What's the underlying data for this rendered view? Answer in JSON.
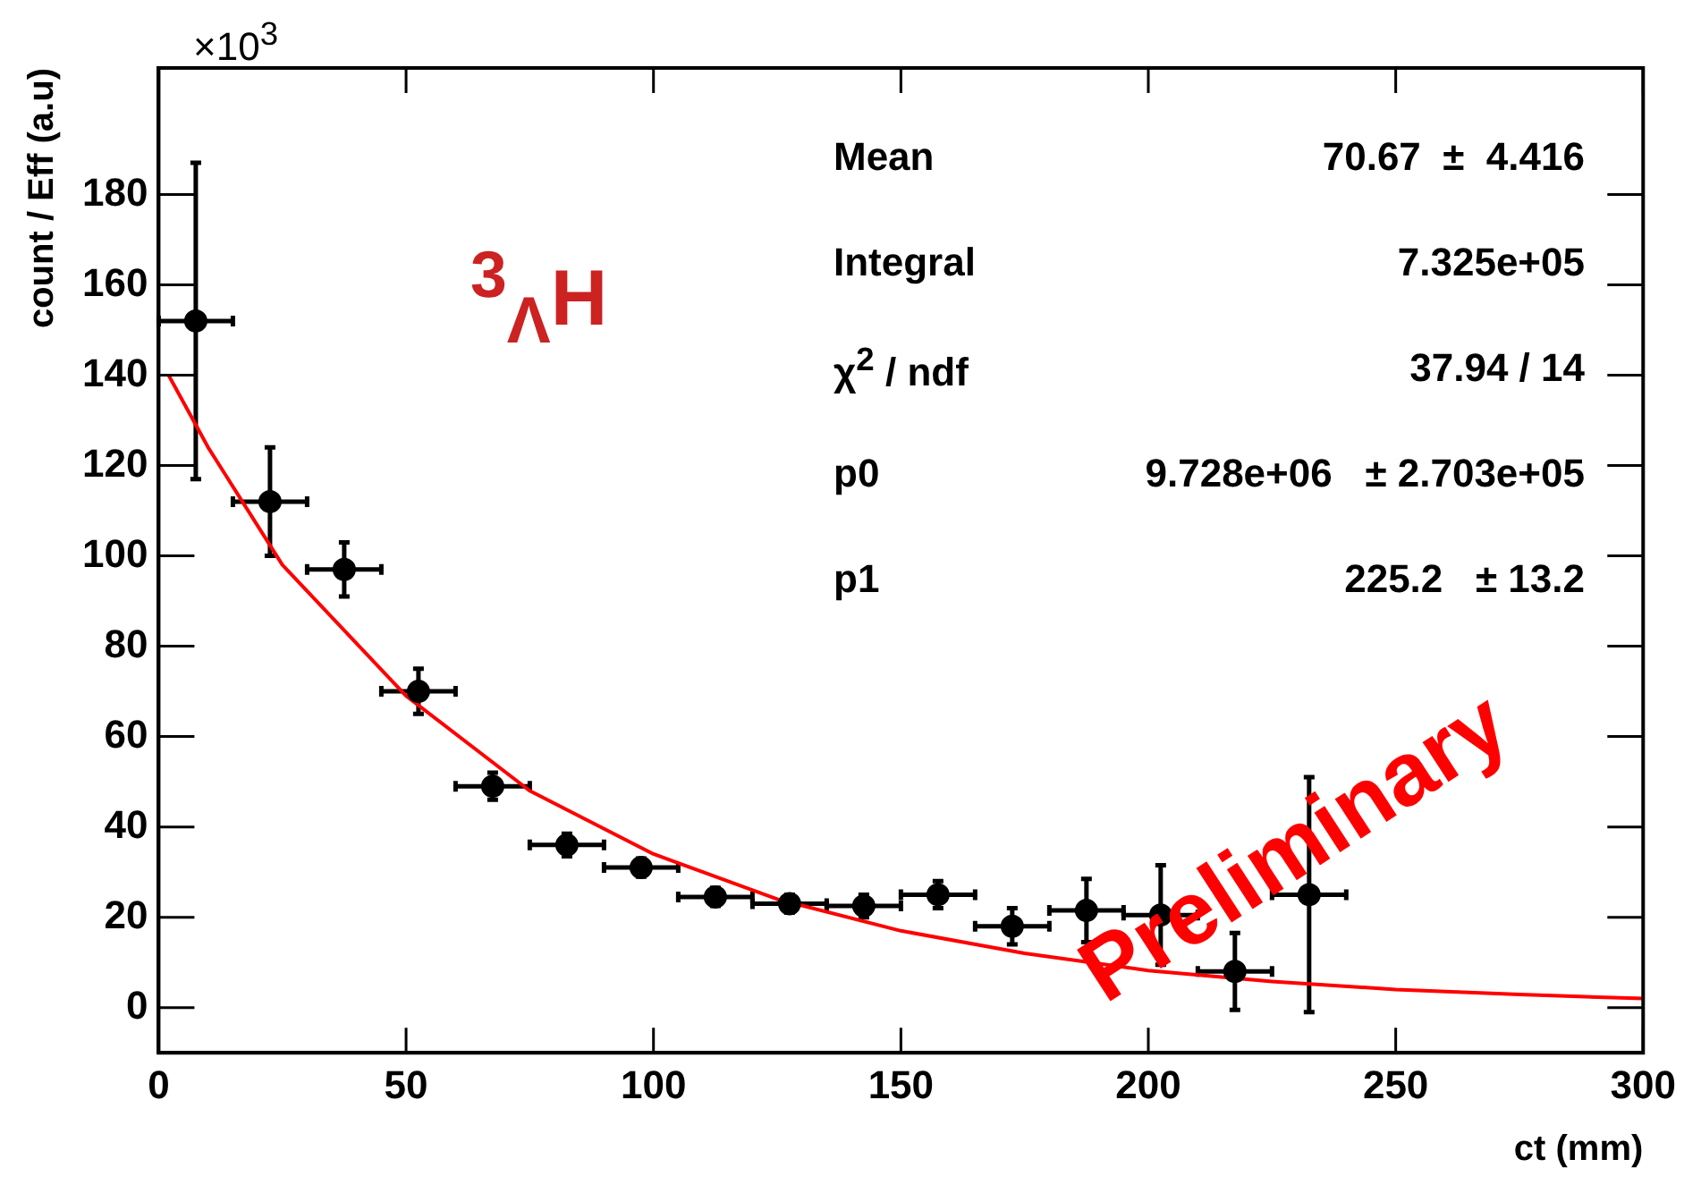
{
  "chart_data": {
    "type": "scatter",
    "xlabel": "ct (mm)",
    "ylabel": "count / Eff (a.u)",
    "xlim": [
      0,
      300
    ],
    "xticks": [
      0,
      50,
      100,
      150,
      200,
      250,
      300
    ],
    "ylim": [
      -10,
      208
    ],
    "yticks": [
      0,
      20,
      40,
      60,
      80,
      100,
      120,
      140,
      160,
      180
    ],
    "grid": false,
    "legend": false,
    "marker": "circle",
    "annotations": [
      "×10$^{3}$",
      "$^{3}$$_{Λ}$H",
      "Preliminary",
      "Mean",
      "70.67  ±  4.416",
      "Integral",
      "7.325e+05",
      "χ$^{2}$ / ndf",
      "37.94 / 14",
      "p0",
      "9.728e+06   ± 2.703e+05",
      "p1",
      "225.2   ± 13.2"
    ],
    "series": [
      {
        "type": "scatter",
        "color": "#000000",
        "x": [
          7.5,
          22.5,
          37.5,
          52.5,
          67.5,
          82.5,
          97.5,
          112.5,
          127.5,
          142.5,
          157.5,
          172.5,
          187.5,
          202.5,
          217.5,
          232.5
        ],
        "values": [
          152,
          112,
          97,
          70,
          49,
          36,
          31,
          24.5,
          23,
          22.5,
          25,
          18,
          21.5,
          20.5,
          8,
          25
        ],
        "errors": [
          35,
          12,
          6,
          5,
          3,
          2.5,
          2,
          2,
          2,
          2.5,
          3,
          4,
          7,
          11,
          8.5,
          26
        ],
        "xerrors": [
          7.5,
          7.5,
          7.5,
          7.5,
          7.5,
          7.5,
          7.5,
          7.5,
          7.5,
          7.5,
          7.5,
          7.5,
          7.5,
          7.5,
          7.5,
          7.5
        ]
      },
      {
        "type": "line",
        "color": "#ff0000",
        "marker": "none",
        "x": [
          2,
          10,
          25,
          50,
          75,
          100,
          125,
          150,
          175,
          200,
          225,
          250,
          275,
          300
        ],
        "values": [
          140,
          124,
          98,
          69,
          48,
          34,
          24,
          17,
          12,
          8.2,
          5.8,
          4,
          2.9,
          2
        ]
      }
    ]
  }
}
